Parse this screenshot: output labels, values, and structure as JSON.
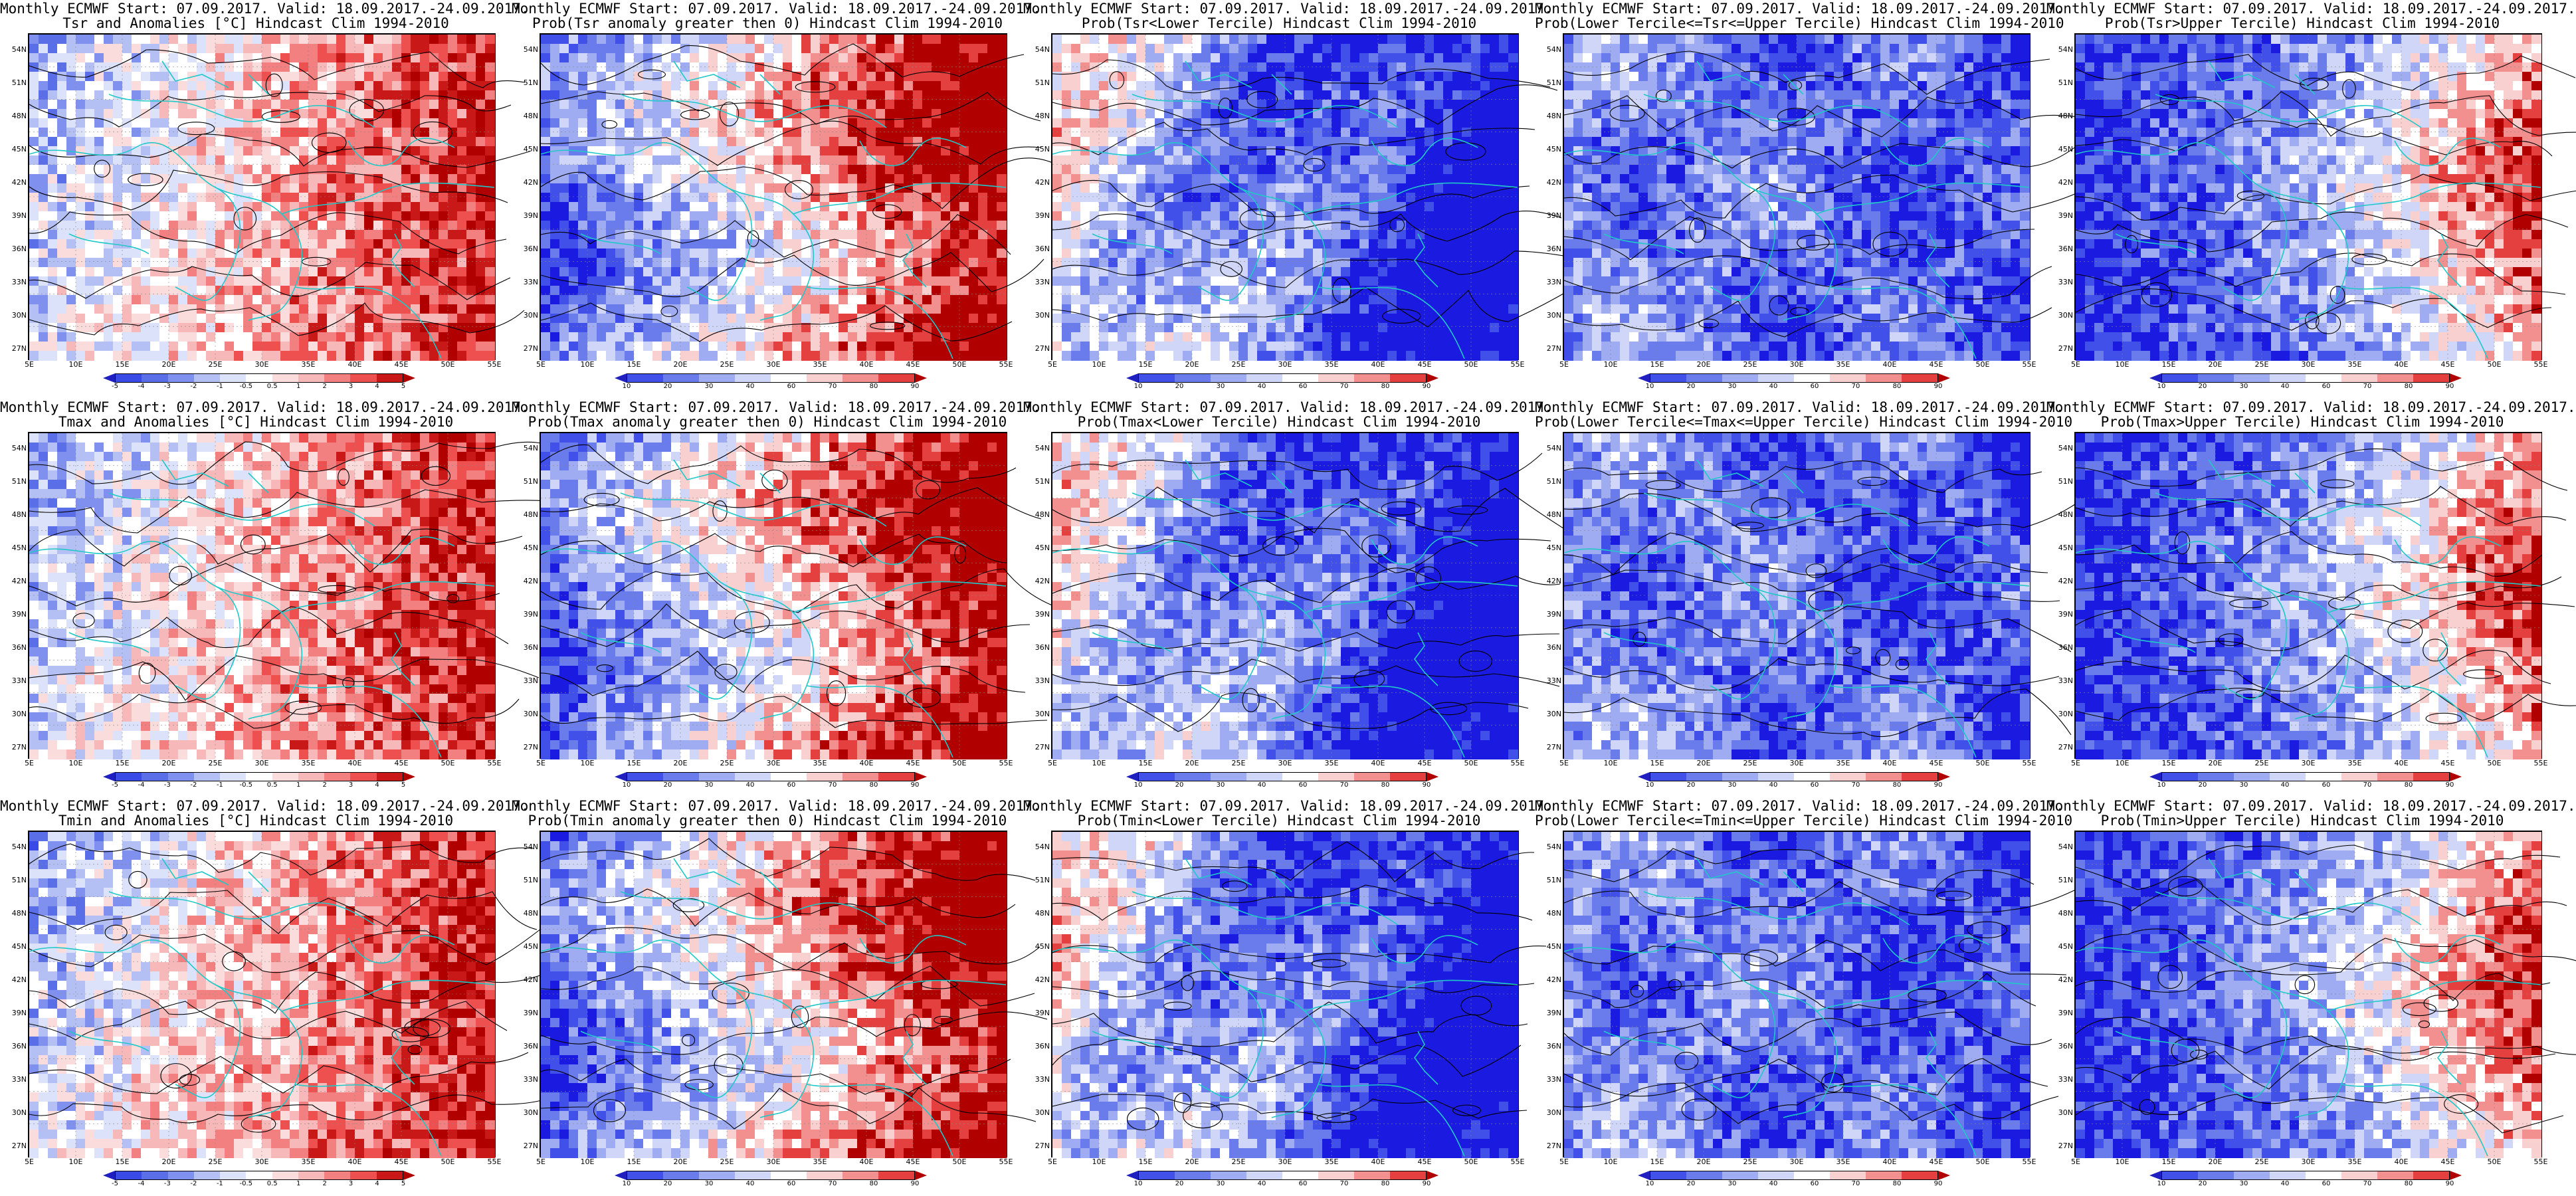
{
  "colors": {
    "blue_dark": "#1a1ae0",
    "blue_mid": "#5a6ee8",
    "blue_light": "#b4c0f4",
    "white": "#ffffff",
    "red_light": "#f6b8b8",
    "red_mid": "#ee5050",
    "red_dark": "#b00000",
    "coast": "#20c8c8",
    "contour": "#000000"
  },
  "lat_labels": [
    "54N",
    "51N",
    "48N",
    "45N",
    "42N",
    "39N",
    "36N",
    "33N",
    "30N",
    "27N"
  ],
  "lon_labels": [
    "5E",
    "10E",
    "15E",
    "20E",
    "25E",
    "30E",
    "35E",
    "40E",
    "45E",
    "50E",
    "55E"
  ],
  "legends": {
    "anom": [
      "-5",
      "-4",
      "-3",
      "-2",
      "-1",
      "-0.5",
      "0.5",
      "1",
      "2",
      "3",
      "4",
      "5"
    ],
    "prob": [
      "10",
      "20",
      "30",
      "40",
      "60",
      "70",
      "80",
      "90"
    ]
  },
  "panels": [
    {
      "title1": "Monthly ECMWF Start: 07.09.2017. Valid: 18.09.2017.-24.09.2017.",
      "title2": "Tsr and Anomalies [°C] Hindcast Clim 1994-2010",
      "kind": "anom",
      "pattern": "east-warm"
    },
    {
      "title1": "Monthly ECMWF Start: 07.09.2017. Valid: 18.09.2017.-24.09.2017.",
      "title2": "Prob(Tsr anomaly greater then 0) Hindcast Clim 1994-2010",
      "kind": "prob",
      "pattern": "east-warm-strong"
    },
    {
      "title1": "Monthly ECMWF Start: 07.09.2017. Valid: 18.09.2017.-24.09.2017.",
      "title2": "Prob(Tsr<Lower Tercile) Hindcast Clim 1994-2010",
      "kind": "prob",
      "pattern": "east-cold"
    },
    {
      "title1": "Monthly ECMWF Start: 07.09.2017. Valid: 18.09.2017.-24.09.2017.",
      "title2": "Prob(Lower Tercile<=Tsr<=Upper Tercile) Hindcast Clim 1994-2010",
      "kind": "prob",
      "pattern": "mostly-blue"
    },
    {
      "title1": "Monthly ECMWF Start: 07.09.2017. Valid: 18.09.2017.-24.09.2017.",
      "title2": "Prob(Tsr>Upper Tercile) Hindcast Clim 1994-2010",
      "kind": "prob",
      "pattern": "west-cold-east-warm"
    },
    {
      "title1": "Monthly ECMWF Start: 07.09.2017. Valid: 18.09.2017.-24.09.2017.",
      "title2": "Tmax and Anomalies [°C] Hindcast Clim 1994-2010",
      "kind": "anom",
      "pattern": "east-warm"
    },
    {
      "title1": "Monthly ECMWF Start: 07.09.2017. Valid: 18.09.2017.-24.09.2017.",
      "title2": "Prob(Tmax anomaly greater then 0) Hindcast Clim 1994-2010",
      "kind": "prob",
      "pattern": "east-warm-strong"
    },
    {
      "title1": "Monthly ECMWF Start: 07.09.2017. Valid: 18.09.2017.-24.09.2017.",
      "title2": "Prob(Tmax<Lower Tercile) Hindcast Clim 1994-2010",
      "kind": "prob",
      "pattern": "east-cold"
    },
    {
      "title1": "Monthly ECMWF Start: 07.09.2017. Valid: 18.09.2017.-24.09.2017.",
      "title2": "Prob(Lower Tercile<=Tmax<=Upper Tercile) Hindcast Clim 1994-2010",
      "kind": "prob",
      "pattern": "mostly-blue"
    },
    {
      "title1": "Monthly ECMWF Start: 07.09.2017. Valid: 18.09.2017.-24.09.2017.",
      "title2": "Prob(Tmax>Upper Tercile) Hindcast Clim 1994-2010",
      "kind": "prob",
      "pattern": "west-cold-east-warm"
    },
    {
      "title1": "Monthly ECMWF Start: 07.09.2017. Valid: 18.09.2017.-24.09.2017.",
      "title2": "Tmin and Anomalies [°C] Hindcast Clim 1994-2010",
      "kind": "anom",
      "pattern": "east-warm"
    },
    {
      "title1": "Monthly ECMWF Start: 07.09.2017. Valid: 18.09.2017.-24.09.2017.",
      "title2": "Prob(Tmin anomaly greater then 0) Hindcast Clim 1994-2010",
      "kind": "prob",
      "pattern": "east-warm-strong"
    },
    {
      "title1": "Monthly ECMWF Start: 07.09.2017. Valid: 18.09.2017.-24.09.2017.",
      "title2": "Prob(Tmin<Lower Tercile) Hindcast Clim 1994-2010",
      "kind": "prob",
      "pattern": "east-cold"
    },
    {
      "title1": "Monthly ECMWF Start: 07.09.2017. Valid: 18.09.2017.-24.09.2017.",
      "title2": "Prob(Lower Tercile<=Tmin<=Upper Tercile) Hindcast Clim 1994-2010",
      "kind": "prob",
      "pattern": "mostly-blue"
    },
    {
      "title1": "Monthly ECMWF Start: 07.09.2017. Valid: 18.09.2017.-24.09.2017.",
      "title2": "Prob(Tmin>Upper Tercile) Hindcast Clim 1994-2010",
      "kind": "prob",
      "pattern": "west-cold-east-warm"
    }
  ]
}
